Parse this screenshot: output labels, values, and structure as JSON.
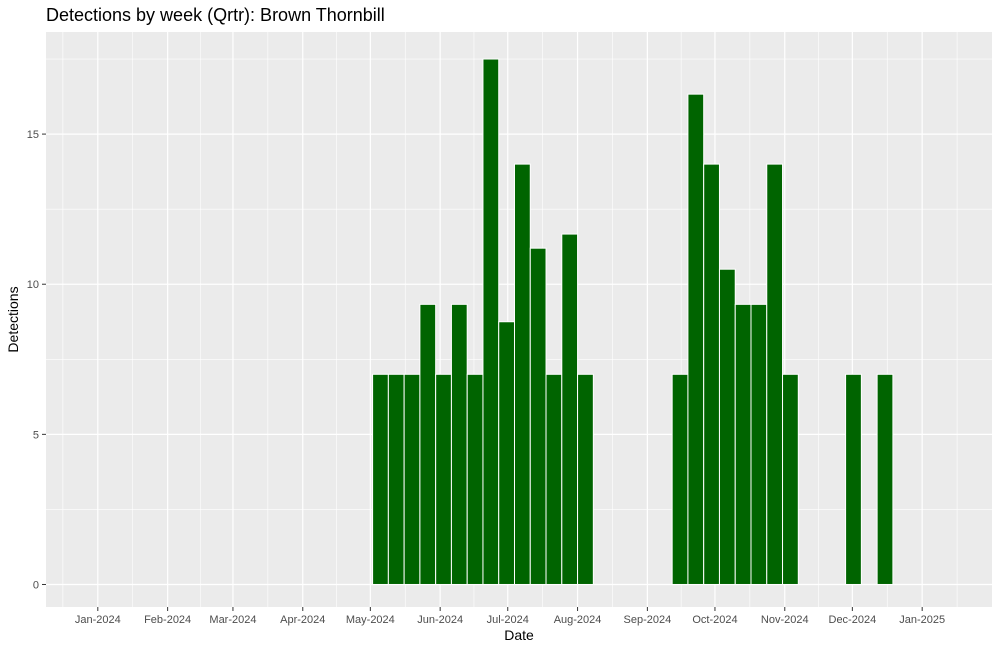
{
  "chart_data": {
    "type": "bar",
    "title": "Detections by week (Qrtr): Brown Thornbill",
    "xlabel": "Date",
    "ylabel": "Detections",
    "bar_color": "#006400",
    "panel_background": "#ebebeb",
    "grid": true,
    "ylim": [
      -0.75,
      18.4
    ],
    "xlim": [
      "2023-12-09",
      "2025-02-01"
    ],
    "y_ticks": [
      0,
      5,
      10,
      15
    ],
    "x_ticks": [
      {
        "date": "2024-01-01",
        "label": "Jan-2024"
      },
      {
        "date": "2024-02-01",
        "label": "Feb-2024"
      },
      {
        "date": "2024-03-01",
        "label": "Mar-2024"
      },
      {
        "date": "2024-04-01",
        "label": "Apr-2024"
      },
      {
        "date": "2024-05-01",
        "label": "May-2024"
      },
      {
        "date": "2024-06-01",
        "label": "Jun-2024"
      },
      {
        "date": "2024-07-01",
        "label": "Jul-2024"
      },
      {
        "date": "2024-08-01",
        "label": "Aug-2024"
      },
      {
        "date": "2024-09-01",
        "label": "Sep-2024"
      },
      {
        "date": "2024-10-01",
        "label": "Oct-2024"
      },
      {
        "date": "2024-11-01",
        "label": "Nov-2024"
      },
      {
        "date": "2024-12-01",
        "label": "Dec-2024"
      },
      {
        "date": "2025-01-01",
        "label": "Jan-2025"
      }
    ],
    "bars": [
      {
        "week_start": "2024-05-02",
        "value": 7.0
      },
      {
        "week_start": "2024-05-09",
        "value": 7.0
      },
      {
        "week_start": "2024-05-16",
        "value": 7.0
      },
      {
        "week_start": "2024-05-23",
        "value": 9.33
      },
      {
        "week_start": "2024-05-30",
        "value": 7.0
      },
      {
        "week_start": "2024-06-06",
        "value": 9.33
      },
      {
        "week_start": "2024-06-13",
        "value": 7.0
      },
      {
        "week_start": "2024-06-20",
        "value": 17.5
      },
      {
        "week_start": "2024-06-27",
        "value": 8.75
      },
      {
        "week_start": "2024-07-04",
        "value": 14.0
      },
      {
        "week_start": "2024-07-11",
        "value": 11.2
      },
      {
        "week_start": "2024-07-18",
        "value": 7.0
      },
      {
        "week_start": "2024-07-25",
        "value": 11.67
      },
      {
        "week_start": "2024-08-01",
        "value": 7.0
      },
      {
        "week_start": "2024-09-12",
        "value": 7.0
      },
      {
        "week_start": "2024-09-19",
        "value": 16.33
      },
      {
        "week_start": "2024-09-26",
        "value": 14.0
      },
      {
        "week_start": "2024-10-03",
        "value": 10.5
      },
      {
        "week_start": "2024-10-10",
        "value": 9.33
      },
      {
        "week_start": "2024-10-17",
        "value": 9.33
      },
      {
        "week_start": "2024-10-24",
        "value": 14.0
      },
      {
        "week_start": "2024-10-31",
        "value": 7.0
      },
      {
        "week_start": "2024-11-28",
        "value": 7.0
      },
      {
        "week_start": "2024-12-12",
        "value": 7.0
      }
    ]
  }
}
